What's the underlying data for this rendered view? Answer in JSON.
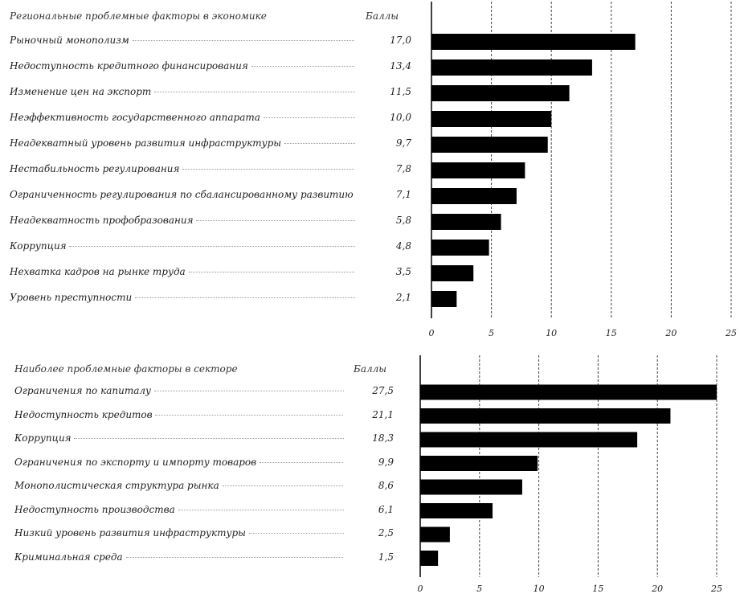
{
  "charts": [
    {
      "header_label": "Региональные проблемные факторы в экономике",
      "header_value": "Баллы"
    },
    {
      "header_label": "Наиболее проблемные факторы в секторе",
      "header_value": "Баллы"
    }
  ],
  "chart_data": [
    {
      "type": "bar",
      "orientation": "horizontal",
      "categories": [
        "Рыночный монополизм",
        "Недоступность кредитного финансирования",
        "Изменение цен на экспорт",
        "Неэффективность государственного аппарата",
        "Неадекватный уровень развития инфраструктуры",
        "Нестабильность регулирования",
        "Ограниченность регулирования по сбалансированному развитию",
        "Неадекватность профобразования",
        "Коррупция",
        "Нехватка кадров на рынке труда",
        "Уровень преступности"
      ],
      "values": [
        17.0,
        13.4,
        11.5,
        10.0,
        9.7,
        7.8,
        7.1,
        5.8,
        4.8,
        3.5,
        2.1
      ],
      "value_labels": [
        "17,0",
        "13,4",
        "11,5",
        "10,0",
        "9,7",
        "7,8",
        "7,1",
        "5,8",
        "4,8",
        "3,5",
        "2,1"
      ],
      "xlim": [
        0,
        25
      ],
      "xticks": [
        "0",
        "5",
        "10",
        "15",
        "20",
        "25"
      ],
      "grid": true
    },
    {
      "type": "bar",
      "orientation": "horizontal",
      "categories": [
        "Ограничения по капиталу",
        "Недоступность кредитов",
        "Коррупция",
        "Ограничения по экспорту и импорту товаров",
        "Монополистическая структура рынка",
        "Недоступность производства",
        "Низкий уровень развития инфраструктуры",
        "Криминальная среда"
      ],
      "values": [
        27.5,
        21.1,
        18.3,
        9.9,
        8.6,
        6.1,
        2.5,
        1.5
      ],
      "value_labels": [
        "27,5",
        "21,1",
        "18,3",
        "9,9",
        "8,6",
        "6,1",
        "2,5",
        "1,5"
      ],
      "xlim": [
        0,
        25
      ],
      "xticks": [
        "0",
        "5",
        "10",
        "15",
        "20",
        "25"
      ],
      "grid": true
    }
  ]
}
